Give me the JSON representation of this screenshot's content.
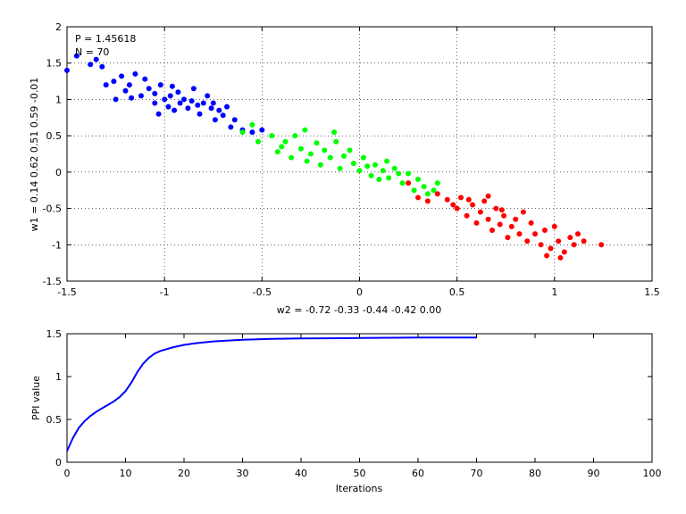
{
  "chart_data": [
    {
      "type": "scatter",
      "title": "",
      "xlabel": "w2 = -0.72  -0.33  -0.44  -0.42  0.00",
      "ylabel": "w1 = 0.14  0.62  0.51  0.59  -0.01",
      "xlim": [
        -1.5,
        1.5
      ],
      "ylim": [
        -1.5,
        2
      ],
      "xticks": [
        -1.5,
        -1,
        -0.5,
        0,
        0.5,
        1,
        1.5
      ],
      "yticks": [
        -1.5,
        -1,
        -0.5,
        0,
        0.5,
        1,
        1.5,
        2
      ],
      "xtick_labels": [
        "-1.5",
        "-1",
        "-0.5",
        "0",
        "0.5",
        "1",
        "1.5"
      ],
      "ytick_labels": [
        "-1.5",
        "-1",
        "-0.5",
        "0",
        "0.5",
        "1",
        "1.5",
        "2"
      ],
      "grid": true,
      "annotations": [
        "P = 1.45618",
        "N = 70"
      ],
      "series": [
        {
          "color": "#0000ff",
          "points": [
            [
              -1.5,
              1.4
            ],
            [
              -1.38,
              1.48
            ],
            [
              -1.35,
              1.55
            ],
            [
              -1.32,
              1.45
            ],
            [
              -1.3,
              1.2
            ],
            [
              -1.26,
              1.25
            ],
            [
              -1.22,
              1.32
            ],
            [
              -1.25,
              1.0
            ],
            [
              -1.2,
              1.12
            ],
            [
              -1.18,
              1.2
            ],
            [
              -1.15,
              1.35
            ],
            [
              -1.1,
              1.28
            ],
            [
              -1.12,
              1.05
            ],
            [
              -1.08,
              1.15
            ],
            [
              -1.05,
              0.95
            ],
            [
              -1.05,
              1.08
            ],
            [
              -1.02,
              1.2
            ],
            [
              -1.0,
              1.0
            ],
            [
              -0.98,
              0.9
            ],
            [
              -0.97,
              1.05
            ],
            [
              -0.95,
              0.85
            ],
            [
              -0.93,
              1.1
            ],
            [
              -0.92,
              0.95
            ],
            [
              -0.9,
              1.0
            ],
            [
              -0.88,
              0.88
            ],
            [
              -0.86,
              0.98
            ],
            [
              -0.85,
              1.15
            ],
            [
              -0.83,
              0.92
            ],
            [
              -0.82,
              0.8
            ],
            [
              -0.8,
              0.95
            ],
            [
              -0.78,
              1.05
            ],
            [
              -0.76,
              0.88
            ],
            [
              -0.74,
              0.72
            ],
            [
              -0.72,
              0.85
            ],
            [
              -0.7,
              0.78
            ],
            [
              -0.68,
              0.9
            ],
            [
              -0.66,
              0.62
            ],
            [
              -0.64,
              0.72
            ],
            [
              -1.17,
              1.02
            ],
            [
              -1.03,
              0.8
            ],
            [
              -0.96,
              1.18
            ],
            [
              -0.75,
              0.95
            ],
            [
              -0.6,
              0.58
            ],
            [
              -0.55,
              0.55
            ],
            [
              -0.5,
              0.58
            ],
            [
              -1.45,
              1.6
            ]
          ]
        },
        {
          "color": "#00ff00",
          "points": [
            [
              -0.6,
              0.55
            ],
            [
              -0.55,
              0.65
            ],
            [
              -0.52,
              0.42
            ],
            [
              -0.45,
              0.5
            ],
            [
              -0.42,
              0.28
            ],
            [
              -0.38,
              0.42
            ],
            [
              -0.35,
              0.2
            ],
            [
              -0.33,
              0.5
            ],
            [
              -0.3,
              0.32
            ],
            [
              -0.28,
              0.58
            ],
            [
              -0.25,
              0.25
            ],
            [
              -0.22,
              0.4
            ],
            [
              -0.2,
              0.1
            ],
            [
              -0.18,
              0.3
            ],
            [
              -0.15,
              0.2
            ],
            [
              -0.12,
              0.42
            ],
            [
              -0.1,
              0.05
            ],
            [
              -0.08,
              0.22
            ],
            [
              -0.05,
              0.3
            ],
            [
              -0.03,
              0.12
            ],
            [
              0.0,
              0.02
            ],
            [
              0.02,
              0.2
            ],
            [
              0.04,
              0.08
            ],
            [
              0.06,
              -0.05
            ],
            [
              0.08,
              0.1
            ],
            [
              0.1,
              -0.1
            ],
            [
              0.12,
              0.02
            ],
            [
              0.15,
              -0.08
            ],
            [
              0.18,
              0.05
            ],
            [
              0.22,
              -0.15
            ],
            [
              0.25,
              -0.02
            ],
            [
              0.28,
              -0.25
            ],
            [
              0.3,
              -0.1
            ],
            [
              0.33,
              -0.2
            ],
            [
              0.35,
              -0.3
            ],
            [
              0.38,
              -0.25
            ],
            [
              0.4,
              -0.15
            ],
            [
              -0.4,
              0.35
            ],
            [
              -0.27,
              0.15
            ],
            [
              -0.13,
              0.55
            ],
            [
              0.14,
              0.15
            ],
            [
              0.2,
              -0.02
            ]
          ]
        },
        {
          "color": "#ff0000",
          "points": [
            [
              0.25,
              -0.15
            ],
            [
              0.3,
              -0.35
            ],
            [
              0.35,
              -0.4
            ],
            [
              0.4,
              -0.3
            ],
            [
              0.45,
              -0.38
            ],
            [
              0.48,
              -0.45
            ],
            [
              0.5,
              -0.5
            ],
            [
              0.52,
              -0.35
            ],
            [
              0.55,
              -0.6
            ],
            [
              0.58,
              -0.45
            ],
            [
              0.6,
              -0.7
            ],
            [
              0.62,
              -0.55
            ],
            [
              0.64,
              -0.4
            ],
            [
              0.66,
              -0.65
            ],
            [
              0.68,
              -0.8
            ],
            [
              0.7,
              -0.5
            ],
            [
              0.72,
              -0.72
            ],
            [
              0.74,
              -0.6
            ],
            [
              0.76,
              -0.9
            ],
            [
              0.78,
              -0.75
            ],
            [
              0.8,
              -0.65
            ],
            [
              0.82,
              -0.85
            ],
            [
              0.84,
              -0.55
            ],
            [
              0.86,
              -0.95
            ],
            [
              0.88,
              -0.7
            ],
            [
              0.9,
              -0.85
            ],
            [
              0.93,
              -1.0
            ],
            [
              0.95,
              -0.8
            ],
            [
              0.98,
              -1.05
            ],
            [
              1.0,
              -0.75
            ],
            [
              1.02,
              -0.95
            ],
            [
              1.05,
              -1.1
            ],
            [
              1.08,
              -0.9
            ],
            [
              1.1,
              -1.0
            ],
            [
              1.12,
              -0.85
            ],
            [
              1.15,
              -0.95
            ],
            [
              1.24,
              -1.0
            ],
            [
              0.56,
              -0.38
            ],
            [
              0.73,
              -0.52
            ],
            [
              0.96,
              -1.15
            ],
            [
              1.03,
              -1.18
            ],
            [
              0.66,
              -0.33
            ]
          ]
        }
      ]
    },
    {
      "type": "line",
      "title": "",
      "xlabel": "Iterations",
      "ylabel": "PPI value",
      "xlim": [
        0,
        100
      ],
      "ylim": [
        0,
        1.5
      ],
      "xticks": [
        0,
        10,
        20,
        30,
        40,
        50,
        60,
        70,
        80,
        90,
        100
      ],
      "yticks": [
        0,
        0.5,
        1,
        1.5
      ],
      "xtick_labels": [
        "0",
        "10",
        "20",
        "30",
        "40",
        "50",
        "60",
        "70",
        "80",
        "90",
        "100"
      ],
      "ytick_labels": [
        "0",
        "0.5",
        "1",
        "1.5"
      ],
      "grid": false,
      "series": [
        {
          "color": "#0000ff",
          "x": [
            0,
            1,
            2,
            3,
            4,
            5,
            6,
            7,
            8,
            9,
            10,
            11,
            12,
            13,
            14,
            15,
            16,
            17,
            18,
            20,
            22,
            25,
            30,
            35,
            40,
            50,
            60,
            70
          ],
          "y": [
            0.13,
            0.28,
            0.4,
            0.48,
            0.54,
            0.59,
            0.63,
            0.67,
            0.71,
            0.76,
            0.83,
            0.93,
            1.05,
            1.15,
            1.22,
            1.27,
            1.3,
            1.32,
            1.34,
            1.37,
            1.39,
            1.41,
            1.43,
            1.44,
            1.445,
            1.45,
            1.455,
            1.456
          ]
        }
      ]
    }
  ]
}
